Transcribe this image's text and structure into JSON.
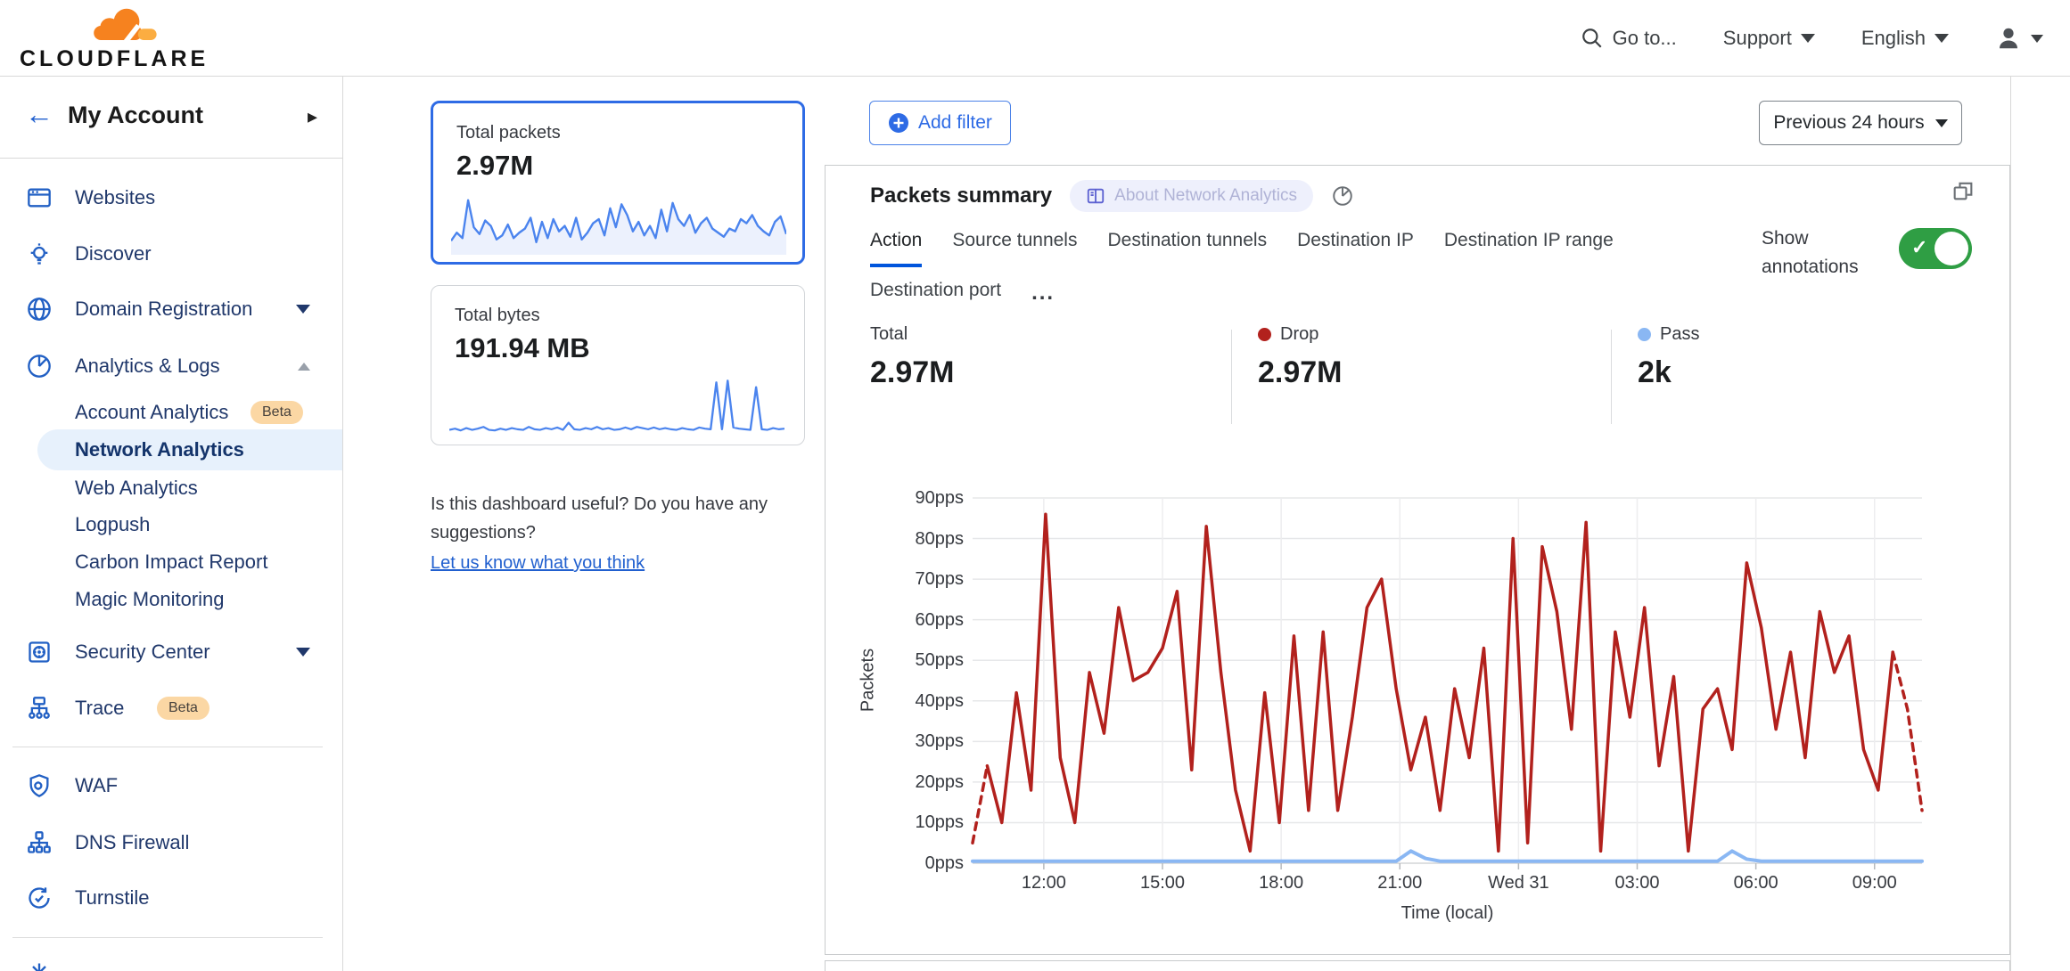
{
  "colors": {
    "accent_blue": "#2e6be5",
    "link_blue": "#2160cf",
    "active_tab_underline": "#0055dc",
    "sidebar_icon_blue": "#2260c4",
    "drop_red": "#b2211d",
    "pass_blue": "#8ab7f3",
    "toggle_green": "#2f9e44",
    "beta_badge_bg": "#fbd7a4",
    "logo_orange": "#f6821f",
    "logo_orange_light": "#fbad41"
  },
  "header": {
    "logo_text": "CLOUDFLARE",
    "goto_label": "Go to...",
    "support_label": "Support",
    "language_label": "English"
  },
  "sidebar": {
    "account_label": "My Account",
    "websites": "Websites",
    "discover": "Discover",
    "domain_registration": "Domain Registration",
    "analytics_logs": "Analytics & Logs",
    "account_analytics": "Account Analytics",
    "account_analytics_badge": "Beta",
    "network_analytics": "Network Analytics",
    "web_analytics": "Web Analytics",
    "logpush": "Logpush",
    "carbon_impact_report": "Carbon Impact Report",
    "magic_monitoring": "Magic Monitoring",
    "security_center": "Security Center",
    "trace": "Trace",
    "trace_badge": "Beta",
    "waf": "WAF",
    "dns_firewall": "DNS Firewall",
    "turnstile": "Turnstile"
  },
  "summary_cards": [
    {
      "title": "Total packets",
      "value": "2.97M",
      "selected": true
    },
    {
      "title": "Total bytes",
      "value": "191.94 MB",
      "selected": false
    }
  ],
  "feedback": {
    "question": "Is this dashboard useful? Do you have any suggestions?",
    "link": "Let us know what you think"
  },
  "toolbar": {
    "add_filter_label": "Add filter",
    "time_range_label": "Previous 24 hours"
  },
  "panel": {
    "title": "Packets summary",
    "about_label": "About Network Analytics",
    "tabs": [
      "Action",
      "Source tunnels",
      "Destination tunnels",
      "Destination IP",
      "Destination IP range",
      "Destination port"
    ],
    "active_tab": "Action",
    "more_label": "...",
    "show_annotations_label": "Show annotations",
    "show_annotations_on": true
  },
  "stats": [
    {
      "label": "Total",
      "value": "2.97M",
      "dot": null
    },
    {
      "label": "Drop",
      "value": "2.97M",
      "dot": "#b2211d"
    },
    {
      "label": "Pass",
      "value": "2k",
      "dot": "#8ab7f3"
    }
  ],
  "chart_data": {
    "main": {
      "type": "line",
      "title": "Packets summary",
      "ylabel": "Packets",
      "xlabel": "Time (local)",
      "ymax": 90,
      "duration_hours": 24,
      "grid": true,
      "ytick_values": [
        0,
        10,
        20,
        30,
        40,
        50,
        60,
        70,
        80,
        90
      ],
      "ytick_labels": [
        "0pps",
        "10pps",
        "20pps",
        "30pps",
        "40pps",
        "50pps",
        "60pps",
        "70pps",
        "80pps",
        "90pps"
      ],
      "xticks": [
        {
          "hour": 1.8,
          "label": "12:00"
        },
        {
          "hour": 4.8,
          "label": "15:00"
        },
        {
          "hour": 7.8,
          "label": "18:00"
        },
        {
          "hour": 10.8,
          "label": "21:00"
        },
        {
          "hour": 13.8,
          "label": "Wed 31"
        },
        {
          "hour": 16.8,
          "label": "03:00"
        },
        {
          "hour": 19.8,
          "label": "06:00"
        },
        {
          "hour": 22.8,
          "label": "09:00"
        }
      ],
      "series": [
        {
          "name": "Pass",
          "color": "#8ab7f3",
          "width": 4,
          "values": [
            0.5,
            0.5,
            0.5,
            0.5,
            0.5,
            0.5,
            0.5,
            0.5,
            0.5,
            0.5,
            0.5,
            0.5,
            0.5,
            0.5,
            0.5,
            0.5,
            0.5,
            0.5,
            0.5,
            0.5,
            0.5,
            0.5,
            0.5,
            0.5,
            0.5,
            0.5,
            0.5,
            0.5,
            0.5,
            0.5,
            3,
            1.2,
            0.5,
            0.5,
            0.5,
            0.5,
            0.5,
            0.5,
            0.5,
            0.5,
            0.5,
            0.5,
            0.5,
            0.5,
            0.5,
            0.5,
            0.5,
            0.5,
            0.5,
            0.5,
            0.5,
            0.5,
            3,
            1,
            0.5,
            0.5,
            0.5,
            0.5,
            0.5,
            0.5,
            0.5,
            0.5,
            0.5,
            0.5,
            0.5,
            0.5
          ]
        },
        {
          "name": "Drop",
          "color": "#b2211d",
          "width": 3.5,
          "dashed_start_points": 2,
          "dashed_end_points": 3,
          "values": [
            5,
            24,
            10,
            42,
            18,
            86,
            26,
            10,
            47,
            32,
            63,
            45,
            47,
            53,
            67,
            23,
            83,
            47,
            18,
            3,
            42,
            10,
            56,
            13,
            57,
            13,
            36,
            63,
            70,
            43,
            23,
            36,
            13,
            43,
            26,
            53,
            3,
            80,
            5,
            78,
            62,
            33,
            84,
            3,
            57,
            36,
            63,
            24,
            46,
            3,
            38,
            43,
            28,
            74,
            58,
            33,
            52,
            26,
            62,
            47,
            56,
            28,
            18,
            52,
            38,
            13
          ]
        }
      ]
    },
    "sparklines": [
      {
        "name": "Total packets",
        "color": "#4b84ee",
        "fill": true,
        "values": [
          18,
          30,
          22,
          78,
          38,
          28,
          48,
          40,
          20,
          26,
          42,
          22,
          30,
          36,
          52,
          16,
          46,
          22,
          50,
          32,
          40,
          24,
          52,
          20,
          30,
          44,
          50,
          26,
          66,
          38,
          72,
          56,
          32,
          46,
          26,
          40,
          22,
          64,
          32,
          74,
          50,
          40,
          56,
          30,
          44,
          52,
          36,
          30,
          24,
          36,
          32,
          50,
          44,
          56,
          40,
          32,
          26,
          46,
          54,
          28
        ]
      },
      {
        "name": "Total bytes",
        "color": "#4b84ee",
        "fill": false,
        "values": [
          10,
          12,
          9,
          13,
          10,
          12,
          15,
          10,
          9,
          12,
          10,
          13,
          11,
          10,
          15,
          11,
          10,
          13,
          11,
          14,
          10,
          22,
          11,
          10,
          13,
          11,
          15,
          11,
          13,
          10,
          11,
          14,
          11,
          15,
          13,
          11,
          14,
          11,
          13,
          11,
          10,
          13,
          11,
          10,
          14,
          12,
          11,
          90,
          11,
          93,
          14,
          12,
          11,
          10,
          82,
          11,
          10,
          13,
          11,
          12
        ]
      }
    ]
  }
}
